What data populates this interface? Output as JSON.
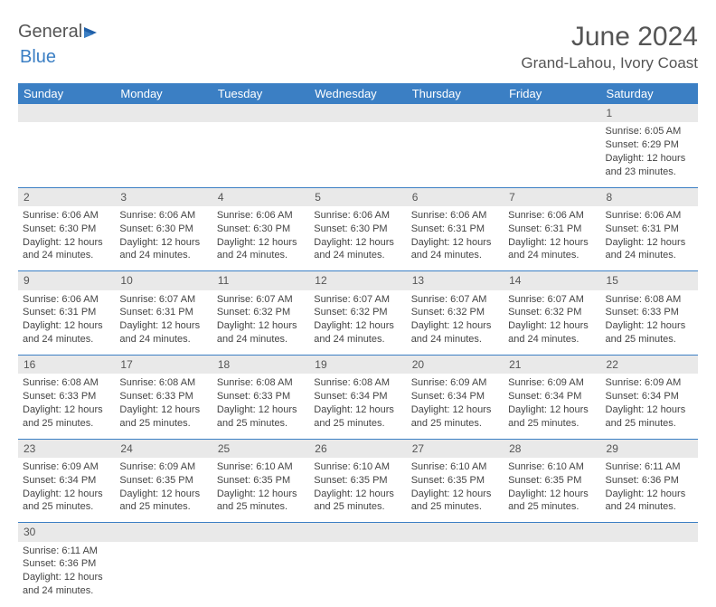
{
  "logo": {
    "text_a": "General",
    "text_b": "Blue"
  },
  "title": "June 2024",
  "location": "Grand-Lahou, Ivory Coast",
  "colors": {
    "header_bg": "#3b7fc4",
    "header_text": "#ffffff",
    "daynum_bg": "#e9e9e9",
    "border": "#3b7fc4",
    "text": "#444444"
  },
  "days_of_week": [
    "Sunday",
    "Monday",
    "Tuesday",
    "Wednesday",
    "Thursday",
    "Friday",
    "Saturday"
  ],
  "weeks": [
    [
      null,
      null,
      null,
      null,
      null,
      null,
      {
        "n": "1",
        "sr": "Sunrise: 6:05 AM",
        "ss": "Sunset: 6:29 PM",
        "dl": "Daylight: 12 hours and 23 minutes."
      }
    ],
    [
      {
        "n": "2",
        "sr": "Sunrise: 6:06 AM",
        "ss": "Sunset: 6:30 PM",
        "dl": "Daylight: 12 hours and 24 minutes."
      },
      {
        "n": "3",
        "sr": "Sunrise: 6:06 AM",
        "ss": "Sunset: 6:30 PM",
        "dl": "Daylight: 12 hours and 24 minutes."
      },
      {
        "n": "4",
        "sr": "Sunrise: 6:06 AM",
        "ss": "Sunset: 6:30 PM",
        "dl": "Daylight: 12 hours and 24 minutes."
      },
      {
        "n": "5",
        "sr": "Sunrise: 6:06 AM",
        "ss": "Sunset: 6:30 PM",
        "dl": "Daylight: 12 hours and 24 minutes."
      },
      {
        "n": "6",
        "sr": "Sunrise: 6:06 AM",
        "ss": "Sunset: 6:31 PM",
        "dl": "Daylight: 12 hours and 24 minutes."
      },
      {
        "n": "7",
        "sr": "Sunrise: 6:06 AM",
        "ss": "Sunset: 6:31 PM",
        "dl": "Daylight: 12 hours and 24 minutes."
      },
      {
        "n": "8",
        "sr": "Sunrise: 6:06 AM",
        "ss": "Sunset: 6:31 PM",
        "dl": "Daylight: 12 hours and 24 minutes."
      }
    ],
    [
      {
        "n": "9",
        "sr": "Sunrise: 6:06 AM",
        "ss": "Sunset: 6:31 PM",
        "dl": "Daylight: 12 hours and 24 minutes."
      },
      {
        "n": "10",
        "sr": "Sunrise: 6:07 AM",
        "ss": "Sunset: 6:31 PM",
        "dl": "Daylight: 12 hours and 24 minutes."
      },
      {
        "n": "11",
        "sr": "Sunrise: 6:07 AM",
        "ss": "Sunset: 6:32 PM",
        "dl": "Daylight: 12 hours and 24 minutes."
      },
      {
        "n": "12",
        "sr": "Sunrise: 6:07 AM",
        "ss": "Sunset: 6:32 PM",
        "dl": "Daylight: 12 hours and 24 minutes."
      },
      {
        "n": "13",
        "sr": "Sunrise: 6:07 AM",
        "ss": "Sunset: 6:32 PM",
        "dl": "Daylight: 12 hours and 24 minutes."
      },
      {
        "n": "14",
        "sr": "Sunrise: 6:07 AM",
        "ss": "Sunset: 6:32 PM",
        "dl": "Daylight: 12 hours and 24 minutes."
      },
      {
        "n": "15",
        "sr": "Sunrise: 6:08 AM",
        "ss": "Sunset: 6:33 PM",
        "dl": "Daylight: 12 hours and 25 minutes."
      }
    ],
    [
      {
        "n": "16",
        "sr": "Sunrise: 6:08 AM",
        "ss": "Sunset: 6:33 PM",
        "dl": "Daylight: 12 hours and 25 minutes."
      },
      {
        "n": "17",
        "sr": "Sunrise: 6:08 AM",
        "ss": "Sunset: 6:33 PM",
        "dl": "Daylight: 12 hours and 25 minutes."
      },
      {
        "n": "18",
        "sr": "Sunrise: 6:08 AM",
        "ss": "Sunset: 6:33 PM",
        "dl": "Daylight: 12 hours and 25 minutes."
      },
      {
        "n": "19",
        "sr": "Sunrise: 6:08 AM",
        "ss": "Sunset: 6:34 PM",
        "dl": "Daylight: 12 hours and 25 minutes."
      },
      {
        "n": "20",
        "sr": "Sunrise: 6:09 AM",
        "ss": "Sunset: 6:34 PM",
        "dl": "Daylight: 12 hours and 25 minutes."
      },
      {
        "n": "21",
        "sr": "Sunrise: 6:09 AM",
        "ss": "Sunset: 6:34 PM",
        "dl": "Daylight: 12 hours and 25 minutes."
      },
      {
        "n": "22",
        "sr": "Sunrise: 6:09 AM",
        "ss": "Sunset: 6:34 PM",
        "dl": "Daylight: 12 hours and 25 minutes."
      }
    ],
    [
      {
        "n": "23",
        "sr": "Sunrise: 6:09 AM",
        "ss": "Sunset: 6:34 PM",
        "dl": "Daylight: 12 hours and 25 minutes."
      },
      {
        "n": "24",
        "sr": "Sunrise: 6:09 AM",
        "ss": "Sunset: 6:35 PM",
        "dl": "Daylight: 12 hours and 25 minutes."
      },
      {
        "n": "25",
        "sr": "Sunrise: 6:10 AM",
        "ss": "Sunset: 6:35 PM",
        "dl": "Daylight: 12 hours and 25 minutes."
      },
      {
        "n": "26",
        "sr": "Sunrise: 6:10 AM",
        "ss": "Sunset: 6:35 PM",
        "dl": "Daylight: 12 hours and 25 minutes."
      },
      {
        "n": "27",
        "sr": "Sunrise: 6:10 AM",
        "ss": "Sunset: 6:35 PM",
        "dl": "Daylight: 12 hours and 25 minutes."
      },
      {
        "n": "28",
        "sr": "Sunrise: 6:10 AM",
        "ss": "Sunset: 6:35 PM",
        "dl": "Daylight: 12 hours and 25 minutes."
      },
      {
        "n": "29",
        "sr": "Sunrise: 6:11 AM",
        "ss": "Sunset: 6:36 PM",
        "dl": "Daylight: 12 hours and 24 minutes."
      }
    ],
    [
      {
        "n": "30",
        "sr": "Sunrise: 6:11 AM",
        "ss": "Sunset: 6:36 PM",
        "dl": "Daylight: 12 hours and 24 minutes."
      },
      null,
      null,
      null,
      null,
      null,
      null
    ]
  ]
}
